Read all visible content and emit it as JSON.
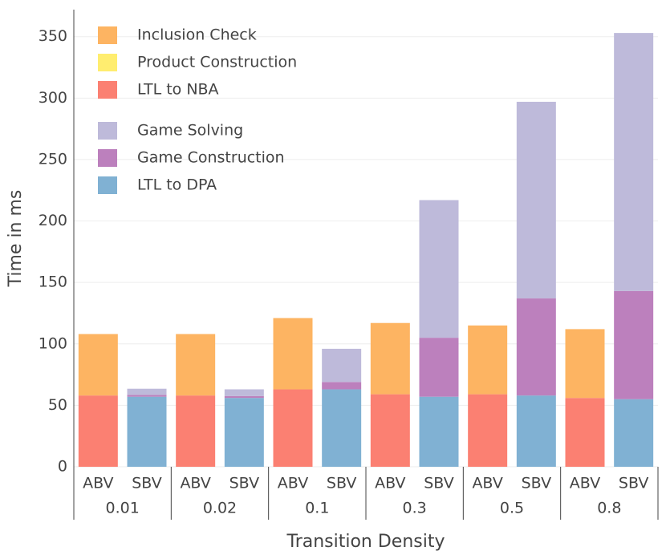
{
  "chart_data": {
    "type": "bar",
    "xlabel": "Transition Density",
    "ylabel": "Time in ms",
    "groups": [
      "0.01",
      "0.02",
      "0.1",
      "0.3",
      "0.5",
      "0.8"
    ],
    "categories": [
      "ABV",
      "SBV",
      "ABV",
      "SBV",
      "ABV",
      "SBV",
      "ABV",
      "SBV",
      "ABV",
      "SBV",
      "ABV",
      "SBV"
    ],
    "series": [
      {
        "name": "LTL to NBA",
        "color": "#fb8072",
        "values": [
          58,
          null,
          58,
          null,
          63,
          null,
          59,
          null,
          59,
          null,
          56,
          null
        ]
      },
      {
        "name": "Product Construction",
        "color": "#ffed6f",
        "values": [
          0,
          null,
          0,
          null,
          0,
          null,
          0,
          null,
          0,
          null,
          0,
          null
        ]
      },
      {
        "name": "Inclusion Check",
        "color": "#fdb462",
        "values": [
          50,
          null,
          50,
          null,
          58,
          null,
          58,
          null,
          56,
          null,
          56,
          null
        ]
      },
      {
        "name": "LTL to DPA",
        "color": "#80b1d3",
        "values": [
          null,
          57,
          null,
          56,
          null,
          63,
          null,
          57,
          null,
          58,
          null,
          55
        ]
      },
      {
        "name": "Game Construction",
        "color": "#bc80bd",
        "values": [
          null,
          1.5,
          null,
          1.5,
          null,
          6,
          null,
          48,
          null,
          79,
          null,
          88
        ]
      },
      {
        "name": "Game Solving",
        "color": "#bebada",
        "values": [
          null,
          5,
          null,
          5.5,
          null,
          27,
          null,
          112,
          null,
          160,
          null,
          210
        ]
      }
    ],
    "ylim": [
      0,
      372
    ],
    "yticks": [
      0,
      50,
      100,
      150,
      200,
      250,
      300,
      350
    ],
    "grid": true
  }
}
